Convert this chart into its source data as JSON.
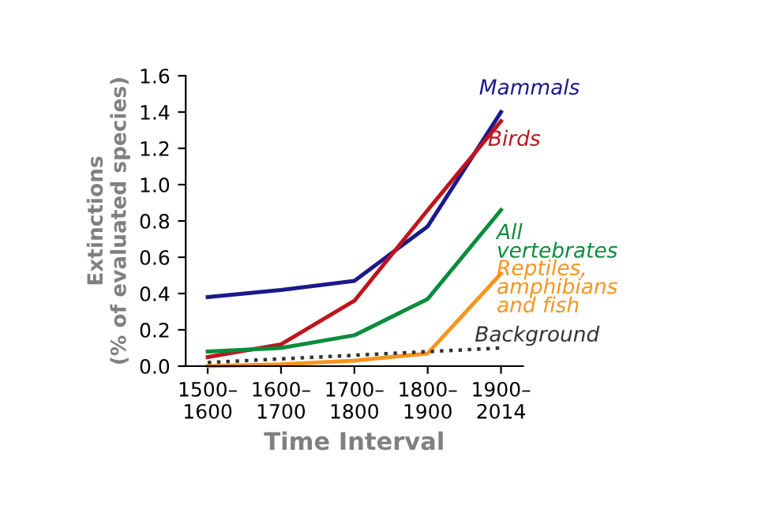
{
  "chart_data": {
    "type": "line",
    "xlabel": "Time Interval",
    "ylabel": "Extinctions\n(% of evaluated species)",
    "categories": [
      "1500–\n1600",
      "1600–\n1700",
      "1700–\n1800",
      "1800–\n1900",
      "1900–\n2014"
    ],
    "ylim": [
      0,
      1.6
    ],
    "yticks": [
      {
        "value": 0,
        "label": "0.0"
      },
      {
        "value": 0.2,
        "label": "0.2"
      },
      {
        "value": 0.4,
        "label": "0.4"
      },
      {
        "value": 0.6,
        "label": "0.6"
      },
      {
        "value": 0.8,
        "label": "0.8"
      },
      {
        "value": 1.0,
        "label": "1.0"
      },
      {
        "value": 1.2,
        "label": "1.2"
      },
      {
        "value": 1.4,
        "label": "1.4"
      },
      {
        "value": 1.6,
        "label": "1.6"
      }
    ],
    "grid": false,
    "legend": false,
    "marker": "none",
    "series": [
      {
        "name": "Mammals",
        "color": "#1a1a8c",
        "values": [
          0.38,
          0.42,
          0.47,
          0.77,
          1.4
        ]
      },
      {
        "name": "Birds",
        "color": "#c0141e",
        "values": [
          0.05,
          0.12,
          0.36,
          0.86,
          1.35
        ]
      },
      {
        "name": "All vertebrates",
        "color": "#0a8c3c",
        "values": [
          0.08,
          0.1,
          0.17,
          0.37,
          0.86
        ]
      },
      {
        "name": "Reptiles, amphibians and fish",
        "color": "#f7941d",
        "values": [
          0.0,
          0.01,
          0.03,
          0.07,
          0.51
        ]
      },
      {
        "name": "Background",
        "color": "#333333",
        "line_style": "dotted",
        "values": [
          0.02,
          0.04,
          0.06,
          0.08,
          0.1
        ]
      }
    ]
  }
}
